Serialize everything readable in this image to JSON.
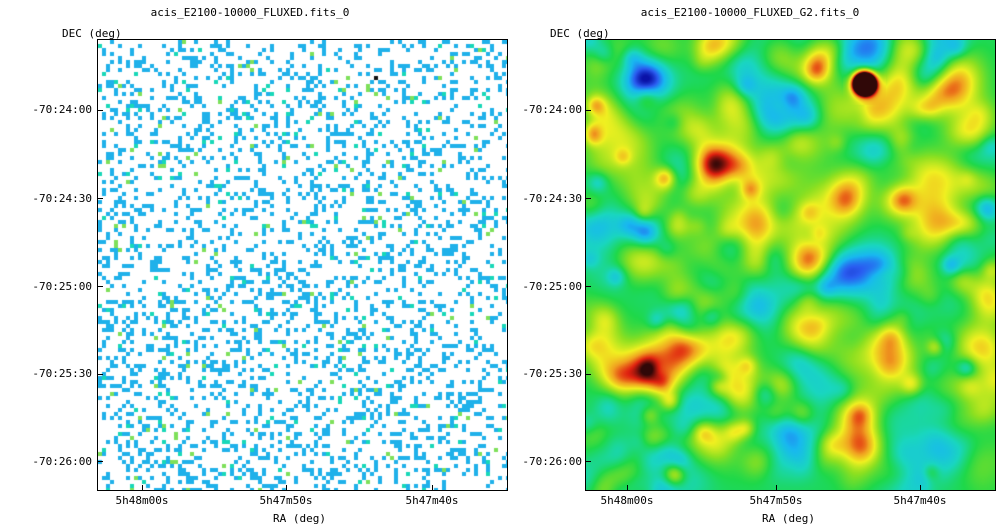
{
  "panels": [
    {
      "title": "acis_E2100-10000_FLUXED.fits_0",
      "y_axis_label": "DEC (deg)",
      "x_axis_label": "RA (deg)",
      "y_ticks": [
        "-70:24:00",
        "-70:24:30",
        "-70:25:00",
        "-70:25:30",
        "-70:26:00"
      ],
      "x_ticks": [
        "5h48m00s",
        "5h47m50s",
        "5h47m40s"
      ],
      "colormap": {
        "background": "#ffffff",
        "low": "#1fb1ea",
        "mid": "#18d8b8",
        "high": "#7ee05a",
        "peak": "#111111"
      }
    },
    {
      "title": "acis_E2100-10000_FLUXED_G2.fits_0",
      "y_axis_label": "DEC (deg)",
      "x_axis_label": "RA (deg)",
      "y_ticks": [
        "-70:24:00",
        "-70:24:30",
        "-70:25:00",
        "-70:25:30",
        "-70:26:00"
      ],
      "x_ticks": [
        "5h48m00s",
        "5h47m50s",
        "5h47m40s"
      ],
      "colormap": {
        "stops": [
          "#0a12a8",
          "#2a5cf0",
          "#18b8f0",
          "#19d6c0",
          "#1ed84a",
          "#8ee020",
          "#f0f020",
          "#f0a020",
          "#e02010",
          "#300808"
        ]
      }
    }
  ]
}
